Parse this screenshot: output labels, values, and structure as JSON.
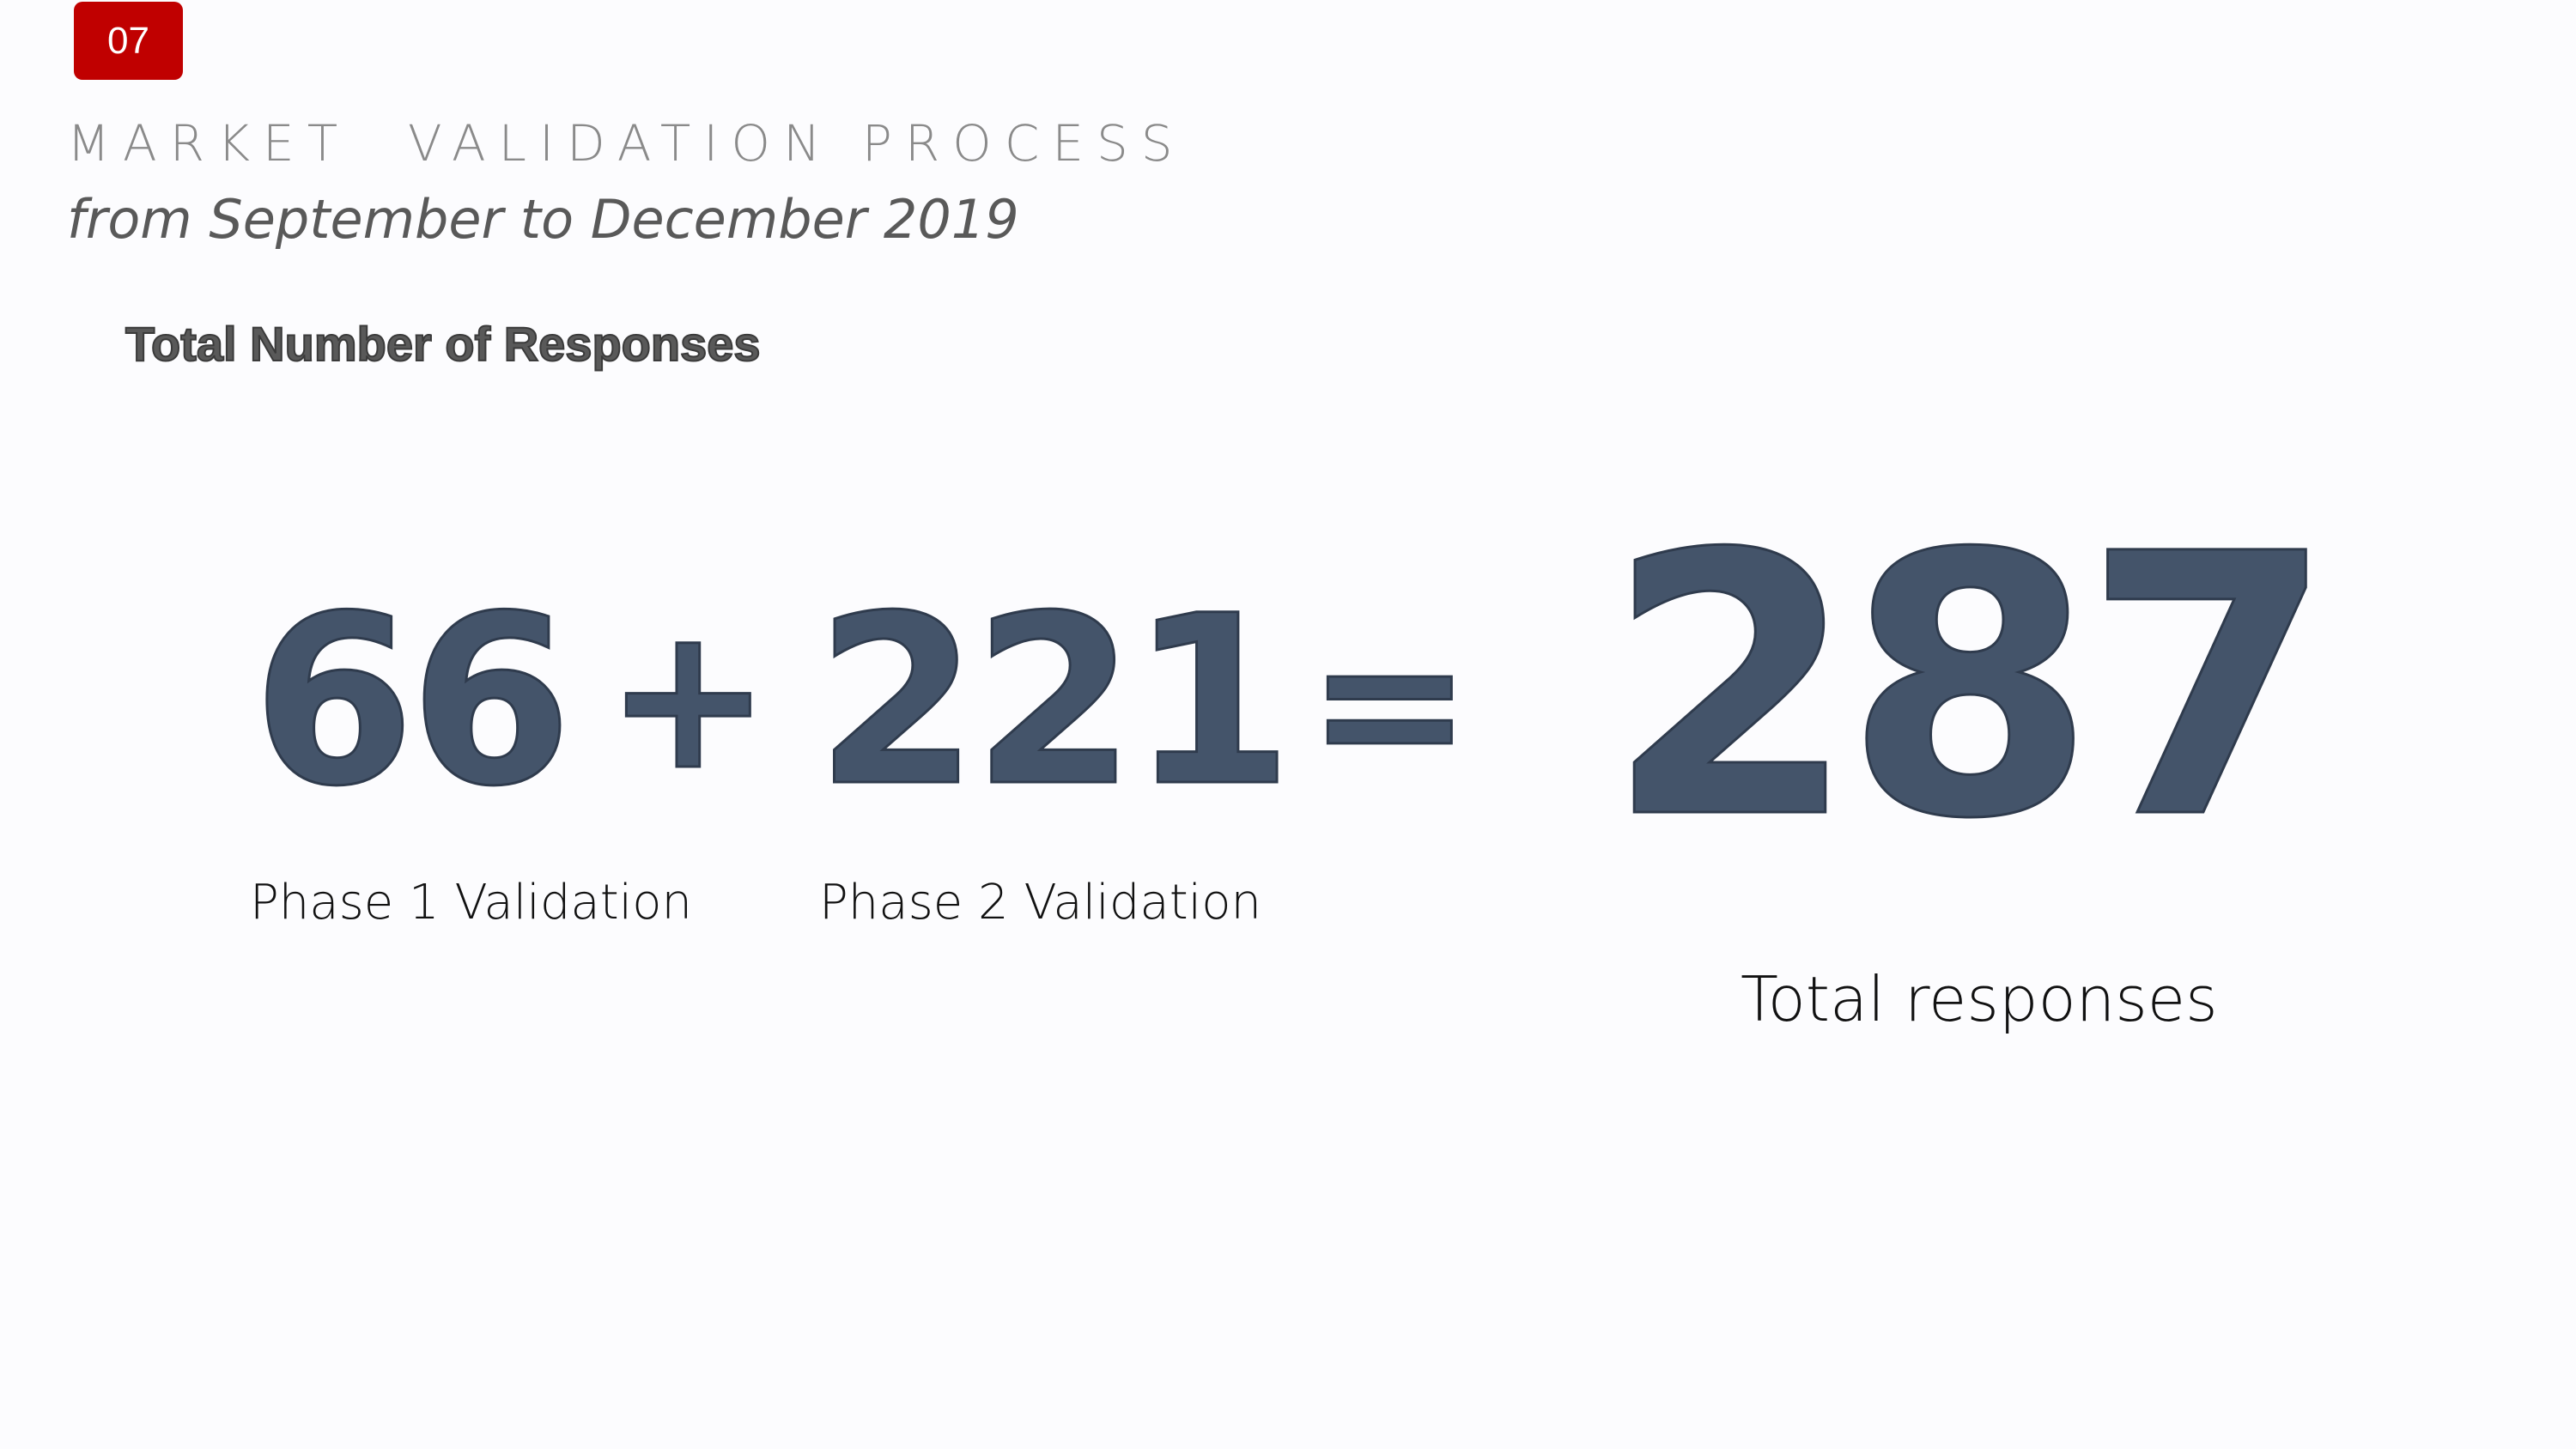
{
  "slide": {
    "number": "07",
    "title": "MARKET  VALIDATION PROCESS",
    "subtitle": "from September to December 2019",
    "heading": "Total Number of Responses"
  },
  "equation": {
    "phase1": {
      "value": "66",
      "label": "Phase 1 Validation"
    },
    "plus": "+",
    "phase2": {
      "value": "221",
      "label": "Phase 2 Validation"
    },
    "equals": "=",
    "total": {
      "value": "287",
      "label": "Total responses"
    }
  },
  "colors": {
    "accent": "#c00000",
    "numbers": "#44546a",
    "title": "#8a8a8a",
    "subtitle": "#595959",
    "background": "#fcfcfe"
  }
}
